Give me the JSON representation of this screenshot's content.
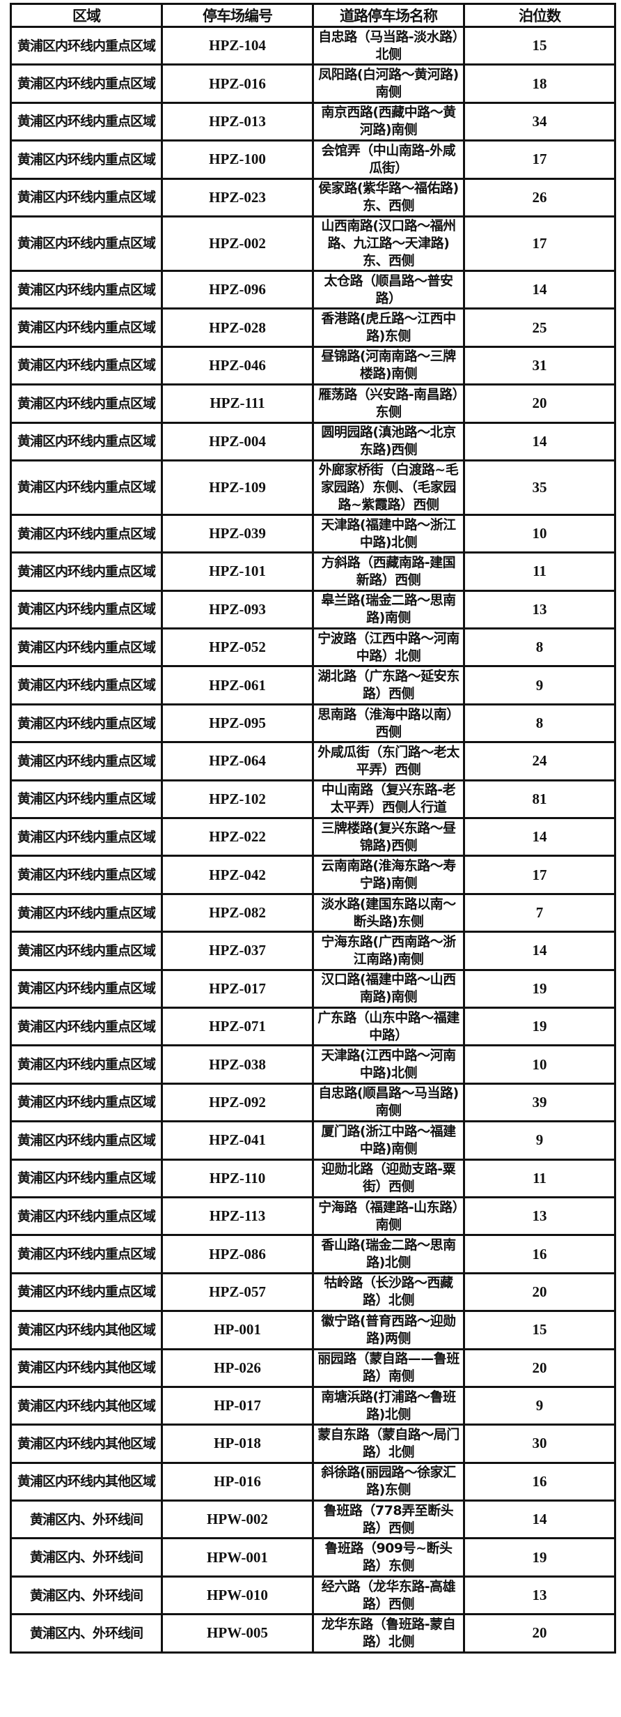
{
  "headers": [
    "区域",
    "停车场编号",
    "道路停车场名称",
    "泊位数"
  ],
  "rows": [
    [
      "黄浦区内环线内重点区域",
      "HPZ-104",
      "自忠路（马当路-淡水路）北侧",
      "15"
    ],
    [
      "黄浦区内环线内重点区域",
      "HPZ-016",
      "凤阳路(白河路～黄河路)南侧",
      "18"
    ],
    [
      "黄浦区内环线内重点区域",
      "HPZ-013",
      "南京西路(西藏中路～黄河路)南侧",
      "34"
    ],
    [
      "黄浦区内环线内重点区域",
      "HPZ-100",
      "会馆弄（中山南路-外咸瓜街）",
      "17"
    ],
    [
      "黄浦区内环线内重点区域",
      "HPZ-023",
      "侯家路(紫华路～福佑路)东、西侧",
      "26"
    ],
    [
      "黄浦区内环线内重点区域",
      "HPZ-002",
      "山西南路(汉口路～福州路、九江路～天津路)东、西侧",
      "17"
    ],
    [
      "黄浦区内环线内重点区域",
      "HPZ-096",
      "太仓路（顺昌路～普安路）",
      "14"
    ],
    [
      "黄浦区内环线内重点区域",
      "HPZ-028",
      "香港路(虎丘路～江西中路)东侧",
      "25"
    ],
    [
      "黄浦区内环线内重点区域",
      "HPZ-046",
      "昼锦路(河南南路～三牌楼路)南侧",
      "31"
    ],
    [
      "黄浦区内环线内重点区域",
      "HPZ-111",
      "雁荡路（兴安路-南昌路）东侧",
      "20"
    ],
    [
      "黄浦区内环线内重点区域",
      "HPZ-004",
      "圆明园路(滇池路～北京东路)西侧",
      "14"
    ],
    [
      "黄浦区内环线内重点区域",
      "HPZ-109",
      "外廊家桥街（白渡路~毛家园路）东侧、（毛家园路~紫霞路）西侧",
      "35"
    ],
    [
      "黄浦区内环线内重点区域",
      "HPZ-039",
      "天津路(福建中路～浙江中路)北侧",
      "10"
    ],
    [
      "黄浦区内环线内重点区域",
      "HPZ-101",
      "方斜路（西藏南路-建国新路）西侧",
      "11"
    ],
    [
      "黄浦区内环线内重点区域",
      "HPZ-093",
      "皋兰路(瑞金二路～思南路)南侧",
      "13"
    ],
    [
      "黄浦区内环线内重点区域",
      "HPZ-052",
      "宁波路（江西中路～河南中路）北侧",
      "8"
    ],
    [
      "黄浦区内环线内重点区域",
      "HPZ-061",
      "湖北路（广东路～延安东路）西侧",
      "9"
    ],
    [
      "黄浦区内环线内重点区域",
      "HPZ-095",
      "思南路（淮海中路以南）西侧",
      "8"
    ],
    [
      "黄浦区内环线内重点区域",
      "HPZ-064",
      "外咸瓜街（东门路～老太平弄）西侧",
      "24"
    ],
    [
      "黄浦区内环线内重点区域",
      "HPZ-102",
      "中山南路（复兴东路-老太平弄）西侧人行道",
      "81"
    ],
    [
      "黄浦区内环线内重点区域",
      "HPZ-022",
      "三牌楼路(复兴东路～昼锦路)西侧",
      "14"
    ],
    [
      "黄浦区内环线内重点区域",
      "HPZ-042",
      "云南南路(淮海东路～寿宁路)南侧",
      "17"
    ],
    [
      "黄浦区内环线内重点区域",
      "HPZ-082",
      "淡水路(建国东路以南～断头路)东侧",
      "7"
    ],
    [
      "黄浦区内环线内重点区域",
      "HPZ-037",
      "宁海东路(广西南路～浙江南路)南侧",
      "14"
    ],
    [
      "黄浦区内环线内重点区域",
      "HPZ-017",
      "汉口路(福建中路～山西南路)南侧",
      "19"
    ],
    [
      "黄浦区内环线内重点区域",
      "HPZ-071",
      "广东路（山东中路～福建中路）",
      "19"
    ],
    [
      "黄浦区内环线内重点区域",
      "HPZ-038",
      "天津路(江西中路～河南中路)北侧",
      "10"
    ],
    [
      "黄浦区内环线内重点区域",
      "HPZ-092",
      "自忠路(顺昌路～马当路)南侧",
      "39"
    ],
    [
      "黄浦区内环线内重点区域",
      "HPZ-041",
      "厦门路(浙江中路～福建中路)南侧",
      "9"
    ],
    [
      "黄浦区内环线内重点区域",
      "HPZ-110",
      "迎勋北路（迎勋支路-粟街）西侧",
      "11"
    ],
    [
      "黄浦区内环线内重点区域",
      "HPZ-113",
      "宁海路（福建路-山东路）南侧",
      "13"
    ],
    [
      "黄浦区内环线内重点区域",
      "HPZ-086",
      "香山路(瑞金二路～思南路)北侧",
      "16"
    ],
    [
      "黄浦区内环线内重点区域",
      "HPZ-057",
      "牯岭路（长沙路～西藏路）北侧",
      "20"
    ],
    [
      "黄浦区内环线内其他区域",
      "HP-001",
      "徽宁路(普育西路～迎勋路)两侧",
      "15"
    ],
    [
      "黄浦区内环线内其他区域",
      "HP-026",
      "丽园路（蒙自路——鲁班路）南侧",
      "20"
    ],
    [
      "黄浦区内环线内其他区域",
      "HP-017",
      "南塘浜路(打浦路～鲁班路)北侧",
      "9"
    ],
    [
      "黄浦区内环线内其他区域",
      "HP-018",
      "蒙自东路（蒙自路～局门路）北侧",
      "30"
    ],
    [
      "黄浦区内环线内其他区域",
      "HP-016",
      "斜徐路(丽园路～徐家汇路)东侧",
      "16"
    ],
    [
      "黄浦区内、外环线间",
      "HPW-002",
      "鲁班路（778弄至断头路）西侧",
      "14"
    ],
    [
      "黄浦区内、外环线间",
      "HPW-001",
      "鲁班路（909号~断头路）东侧",
      "19"
    ],
    [
      "黄浦区内、外环线间",
      "HPW-010",
      "经六路（龙华东路-高雄路）西侧",
      "13"
    ],
    [
      "黄浦区内、外环线间",
      "HPW-005",
      "龙华东路（鲁班路-蒙自路）北侧",
      "20"
    ]
  ]
}
